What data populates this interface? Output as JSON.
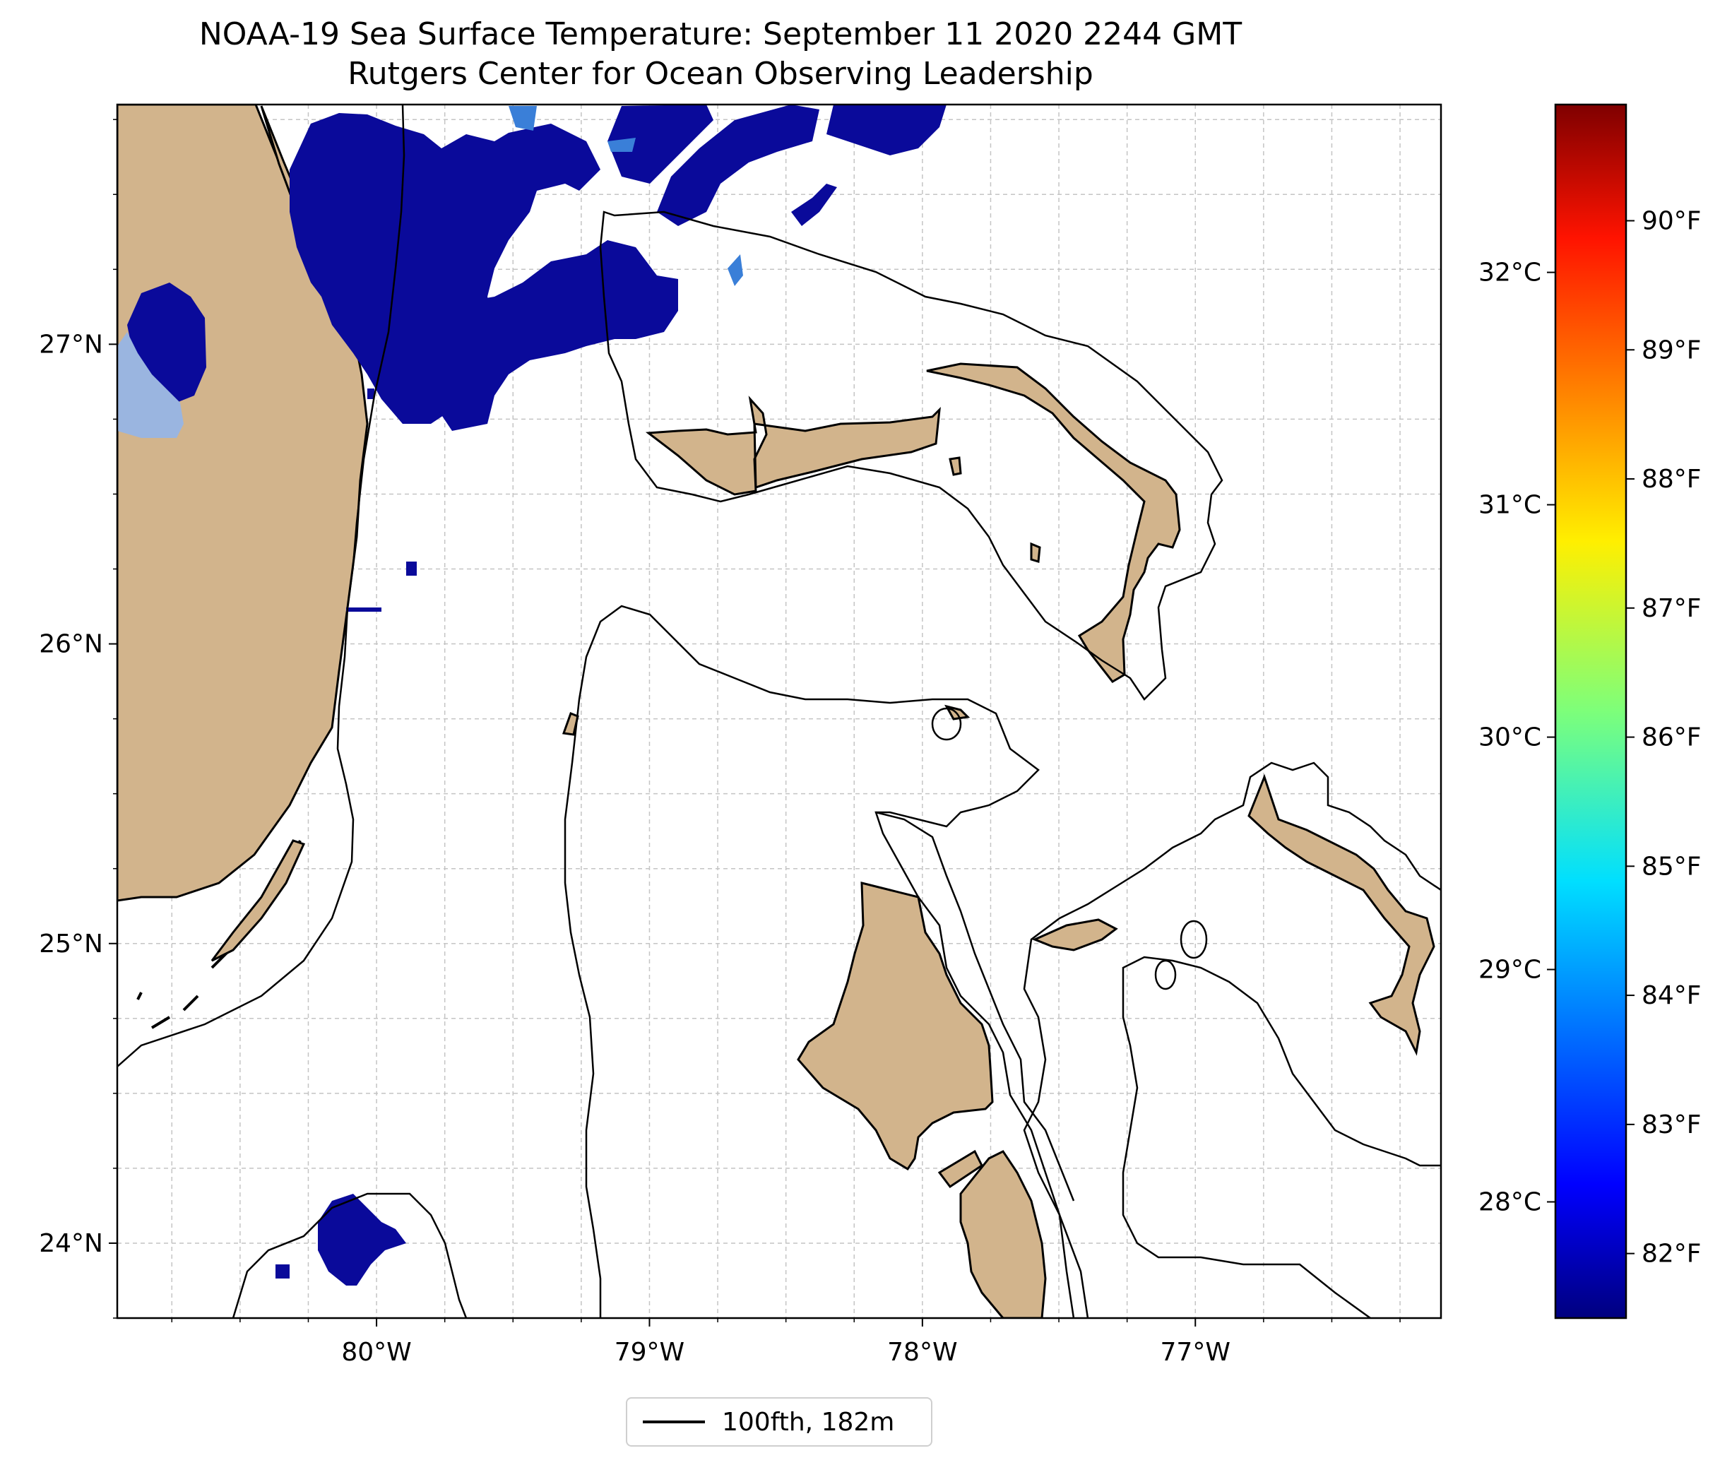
{
  "title": "NOAA-19 Sea Surface Temperature: September 11 2020 2244 GMT",
  "subtitle": "Rutgers Center for Ocean Observing Leadership",
  "map": {
    "lon_range": [
      -80.95,
      -76.1
    ],
    "lat_range": [
      23.75,
      27.8
    ],
    "lon_ticks": [
      {
        "value": -80,
        "label": "80°W"
      },
      {
        "value": -79,
        "label": "79°W"
      },
      {
        "value": -78,
        "label": "78°W"
      },
      {
        "value": -77,
        "label": "77°W"
      }
    ],
    "lat_ticks": [
      {
        "value": 24,
        "label": "24°N"
      },
      {
        "value": 25,
        "label": "25°N"
      },
      {
        "value": 26,
        "label": "26°N"
      },
      {
        "value": 27,
        "label": "27°N"
      }
    ],
    "gridlines": "dashed",
    "land_color": "#d2b48c",
    "ocean_color": "#ffffff"
  },
  "legend": {
    "label": "100fth, 182m",
    "position": "bottom-center"
  },
  "colorbar": {
    "colormap": "jet",
    "range_f": [
      81.5,
      90.9
    ],
    "fahrenheit_ticks": [
      {
        "value": 82,
        "label": "82°F"
      },
      {
        "value": 83,
        "label": "83°F"
      },
      {
        "value": 84,
        "label": "84°F"
      },
      {
        "value": 85,
        "label": "85°F"
      },
      {
        "value": 86,
        "label": "86°F"
      },
      {
        "value": 87,
        "label": "87°F"
      },
      {
        "value": 88,
        "label": "88°F"
      },
      {
        "value": 89,
        "label": "89°F"
      },
      {
        "value": 90,
        "label": "90°F"
      }
    ],
    "celsius_ticks": [
      {
        "value": 28,
        "label": "28°C"
      },
      {
        "value": 29,
        "label": "29°C"
      },
      {
        "value": 30,
        "label": "30°C"
      },
      {
        "value": 31,
        "label": "31°C"
      },
      {
        "value": 32,
        "label": "32°C"
      }
    ]
  }
}
